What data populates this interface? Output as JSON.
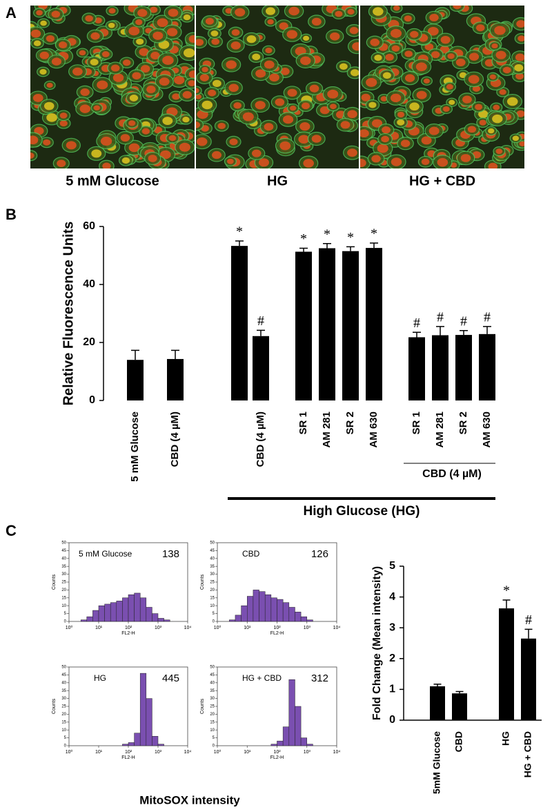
{
  "figure": {
    "panel_labels": [
      "A",
      "B",
      "C"
    ],
    "panel_a_captions": [
      "5 mM Glucose",
      "HG",
      "HG + CBD"
    ],
    "panel_c_xlabel": "MitoSOX intensity"
  },
  "chart_data": [
    {
      "type": "bar",
      "ylabel": "Relative Fluorescence Units",
      "categories": [
        "5 mM Glucose",
        "CBD (4 µM)",
        null,
        "CBD (4 µM)",
        "SR 1",
        "AM 281",
        "SR 2",
        "AM 630",
        "SR 1",
        "AM 281",
        "SR 2",
        "AM 630"
      ],
      "values": [
        14,
        14.3,
        53.3,
        22.2,
        51.3,
        52.5,
        51.5,
        52.6,
        21.8,
        22.5,
        22.6,
        22.9
      ],
      "errors": [
        3.3,
        3,
        1.7,
        2,
        1.2,
        1.6,
        1.5,
        1.7,
        1.7,
        3,
        1.5,
        2.6
      ],
      "markers": [
        null,
        null,
        "*",
        "#",
        "*",
        "*",
        "*",
        "*",
        "#",
        "#",
        "#",
        "#"
      ],
      "group_labels": [
        "CBD (4 µM)",
        "High Glucose (HG)"
      ],
      "color": "#000000",
      "ylim": [
        0,
        60
      ],
      "yticks": [
        0,
        20,
        40,
        60
      ]
    },
    {
      "type": "histogram",
      "title": "5 mM Glucose",
      "annotation": "138",
      "xlabel": "FL2-H",
      "ylabel": "Counts",
      "log_x": true,
      "bins": [
        1,
        1.58,
        2.51,
        3.98,
        6.31,
        10,
        15.85,
        25.12,
        39.81,
        63.1,
        100,
        158.5,
        251.2,
        398.1,
        631,
        1000,
        1585,
        2512,
        3981,
        6310,
        10000
      ],
      "counts": [
        0,
        0,
        1,
        3,
        7,
        10,
        11,
        12,
        13,
        15,
        17,
        18,
        15,
        9,
        5,
        2,
        1,
        0,
        0,
        0
      ],
      "color": "#7a4fb0",
      "xlim": [
        1,
        10000
      ],
      "xticks": [
        {
          "value": 1,
          "label": "10⁰"
        },
        {
          "value": 10,
          "label": "10¹"
        },
        {
          "value": 100,
          "label": "10²"
        },
        {
          "value": 1000,
          "label": "10³"
        },
        {
          "value": 10000,
          "label": "10⁴"
        }
      ],
      "ylim": [
        0,
        50
      ],
      "yticks": [
        0,
        5,
        10,
        15,
        20,
        25,
        30,
        35,
        40,
        45,
        50
      ]
    },
    {
      "type": "histogram",
      "title": "CBD",
      "annotation": "126",
      "xlabel": "FL2-H",
      "ylabel": "Counts",
      "log_x": true,
      "bins": [
        1,
        1.58,
        2.51,
        3.98,
        6.31,
        10,
        15.85,
        25.12,
        39.81,
        63.1,
        100,
        158.5,
        251.2,
        398.1,
        631,
        1000,
        1585,
        2512,
        3981,
        6310,
        10000
      ],
      "counts": [
        0,
        0,
        1,
        4,
        10,
        16,
        20,
        19,
        17,
        15,
        14,
        12,
        9,
        6,
        3,
        1,
        0,
        0,
        0,
        0
      ],
      "color": "#7a4fb0",
      "xlim": [
        1,
        10000
      ],
      "xticks": [
        {
          "value": 1,
          "label": "10⁰"
        },
        {
          "value": 10,
          "label": "10¹"
        },
        {
          "value": 100,
          "label": "10²"
        },
        {
          "value": 1000,
          "label": "10³"
        },
        {
          "value": 10000,
          "label": "10⁴"
        }
      ],
      "ylim": [
        0,
        50
      ],
      "yticks": [
        0,
        5,
        10,
        15,
        20,
        25,
        30,
        35,
        40,
        45,
        50
      ]
    },
    {
      "type": "histogram",
      "title": "HG",
      "annotation": "445",
      "xlabel": "FL2-H",
      "ylabel": "Counts",
      "log_x": true,
      "bins": [
        1,
        1.58,
        2.51,
        3.98,
        6.31,
        10,
        15.85,
        25.12,
        39.81,
        63.1,
        100,
        158.5,
        251.2,
        398.1,
        631,
        1000,
        1585,
        2512,
        3981,
        6310,
        10000
      ],
      "counts": [
        0,
        0,
        0,
        0,
        0,
        0,
        0,
        0,
        0,
        1,
        2,
        8,
        46,
        30,
        6,
        1,
        0,
        0,
        0,
        0
      ],
      "color": "#7a4fb0",
      "xlim": [
        1,
        10000
      ],
      "xticks": [
        {
          "value": 1,
          "label": "10⁰"
        },
        {
          "value": 10,
          "label": "10¹"
        },
        {
          "value": 100,
          "label": "10²"
        },
        {
          "value": 1000,
          "label": "10³"
        },
        {
          "value": 10000,
          "label": "10⁴"
        }
      ],
      "ylim": [
        0,
        50
      ],
      "yticks": [
        0,
        5,
        10,
        15,
        20,
        25,
        30,
        35,
        40,
        45,
        50
      ]
    },
    {
      "type": "histogram",
      "title": "HG + CBD",
      "annotation": "312",
      "xlabel": "FL2-H",
      "ylabel": "Counts",
      "log_x": true,
      "bins": [
        1,
        1.58,
        2.51,
        3.98,
        6.31,
        10,
        15.85,
        25.12,
        39.81,
        63.1,
        100,
        158.5,
        251.2,
        398.1,
        631,
        1000,
        1585,
        2512,
        3981,
        6310,
        10000
      ],
      "counts": [
        0,
        0,
        0,
        0,
        0,
        0,
        0,
        0,
        0,
        1,
        3,
        12,
        42,
        25,
        5,
        1,
        0,
        0,
        0,
        0
      ],
      "color": "#7a4fb0",
      "xlim": [
        1,
        10000
      ],
      "xticks": [
        {
          "value": 1,
          "label": "10⁰"
        },
        {
          "value": 10,
          "label": "10¹"
        },
        {
          "value": 100,
          "label": "10²"
        },
        {
          "value": 1000,
          "label": "10³"
        },
        {
          "value": 10000,
          "label": "10⁴"
        }
      ],
      "ylim": [
        0,
        50
      ],
      "yticks": [
        0,
        5,
        10,
        15,
        20,
        25,
        30,
        35,
        40,
        45,
        50
      ]
    },
    {
      "type": "bar",
      "ylabel": "Fold Change (Mean intensity)",
      "categories": [
        "5mM Glucose",
        "CBD",
        "HG",
        "HG + CBD"
      ],
      "values": [
        1.1,
        0.87,
        3.63,
        2.65
      ],
      "errors": [
        0.07,
        0.06,
        0.27,
        0.3
      ],
      "markers": [
        null,
        null,
        "*",
        "#"
      ],
      "color": "#000000",
      "ylim": [
        0,
        5
      ],
      "yticks": [
        0,
        1,
        2,
        3,
        4,
        5
      ]
    }
  ]
}
